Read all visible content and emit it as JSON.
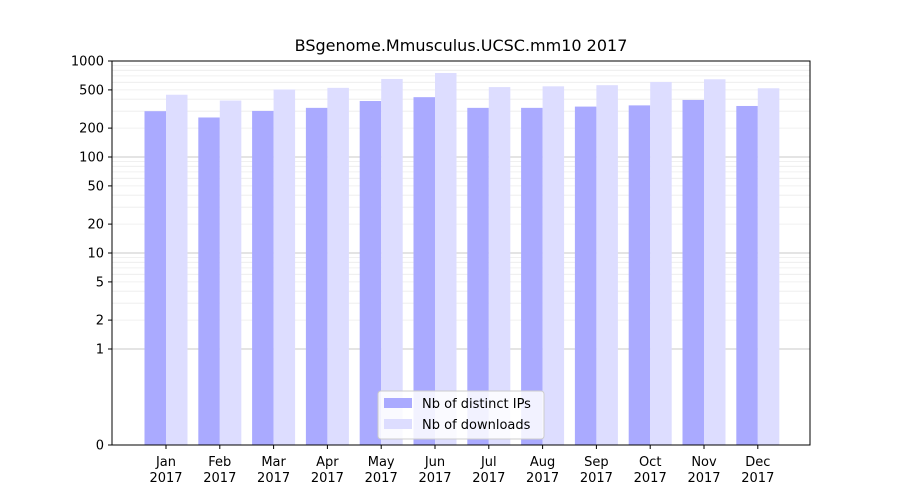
{
  "chart_data": {
    "type": "bar",
    "title": "BSgenome.Mmusculus.UCSC.mm10 2017",
    "xlabel": "",
    "ylabel": "",
    "scale": "symlog",
    "grid": true,
    "legend_position": "bottom-center",
    "ylim": [
      0,
      1000
    ],
    "yticks": [
      0,
      1,
      2,
      5,
      10,
      20,
      50,
      100,
      200,
      500,
      1000
    ],
    "categories": [
      [
        "Jan",
        "2017"
      ],
      [
        "Feb",
        "2017"
      ],
      [
        "Mar",
        "2017"
      ],
      [
        "Apr",
        "2017"
      ],
      [
        "May",
        "2017"
      ],
      [
        "Jun",
        "2017"
      ],
      [
        "Jul",
        "2017"
      ],
      [
        "Aug",
        "2017"
      ],
      [
        "Sep",
        "2017"
      ],
      [
        "Oct",
        "2017"
      ],
      [
        "Nov",
        "2017"
      ],
      [
        "Dec",
        "2017"
      ]
    ],
    "series": [
      {
        "name": "Nb of distinct IPs",
        "color": "#aaaaff",
        "values": [
          300,
          258,
          302,
          325,
          383,
          420,
          325,
          325,
          335,
          345,
          393,
          340
        ]
      },
      {
        "name": "Nb of downloads",
        "color": "#ddddff",
        "values": [
          445,
          387,
          505,
          525,
          650,
          750,
          535,
          545,
          560,
          605,
          645,
          520
        ]
      }
    ]
  }
}
